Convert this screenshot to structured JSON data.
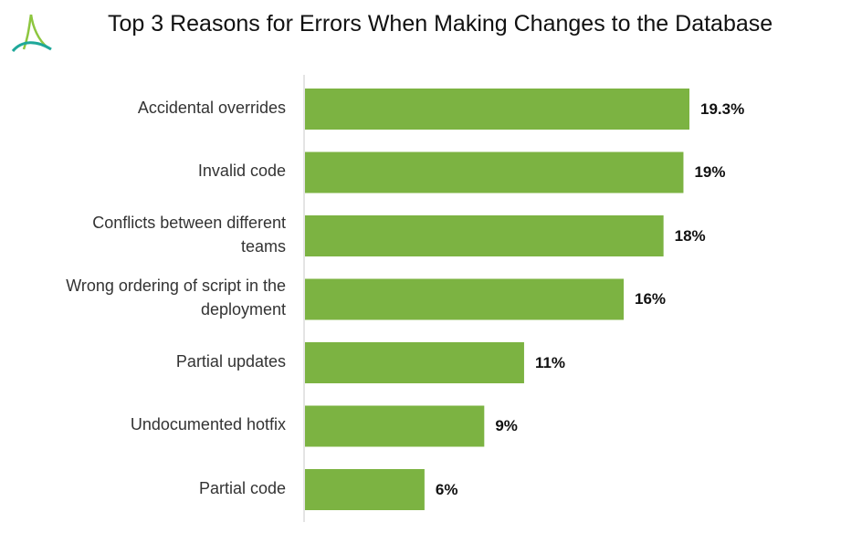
{
  "colors": {
    "bar": "#7cb342",
    "axis": "#c8c8c8",
    "logo_teal": "#1fa89a",
    "logo_green": "#8dc63f"
  },
  "logo": {
    "icon": "stylized-a-logo-icon"
  },
  "chart_data": {
    "type": "bar",
    "orientation": "horizontal",
    "title": "Top 3 Reasons for Errors When Making Changes to the Database",
    "categories": [
      "Accidental overrides",
      "Invalid code",
      "Conflicts between different teams",
      "Wrong ordering of script in the deployment",
      "Partial updates",
      "Undocumented hotfix",
      "Partial code"
    ],
    "category_lines": [
      [
        "Accidental overrides"
      ],
      [
        "Invalid code"
      ],
      [
        "Conflicts between different",
        "teams"
      ],
      [
        "Wrong ordering of script in the",
        "deployment"
      ],
      [
        "Partial updates"
      ],
      [
        "Undocumented hotfix"
      ],
      [
        "Partial code"
      ]
    ],
    "values": [
      19.3,
      19,
      18,
      16,
      11,
      9,
      6
    ],
    "value_labels": [
      "19.3%",
      "19%",
      "18%",
      "16%",
      "11%",
      "9%",
      "6%"
    ],
    "xlim": [
      0,
      19.3
    ],
    "grid": false,
    "legend": "none"
  }
}
